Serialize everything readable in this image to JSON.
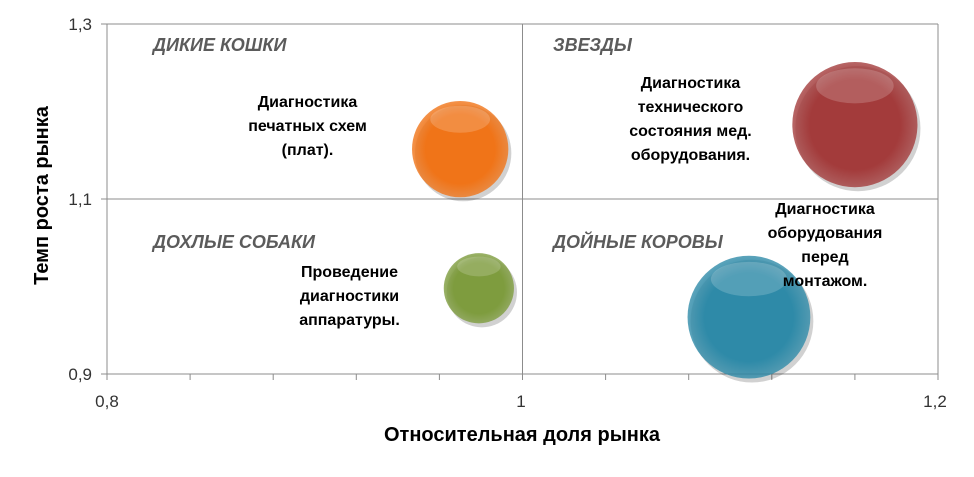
{
  "chart_data": {
    "type": "bubble",
    "xlabel": "Относительная доля рынка",
    "ylabel": "Темп роста рынка",
    "xlim": [
      0.8,
      1.2
    ],
    "ylim": [
      0.9,
      1.3
    ],
    "x_ticks": [
      "0,8",
      "1",
      "1,2"
    ],
    "y_ticks": [
      "0,9",
      "1,1",
      "1,3"
    ],
    "x_minor_step": 0.04,
    "divider": {
      "x": 1.0,
      "y": 1.1
    },
    "quadrants": [
      {
        "label": "ДИКИЕ КОШКИ"
      },
      {
        "label": "ЗВЕЗДЫ"
      },
      {
        "label": "ДОХЛЫЕ СОБАКИ"
      },
      {
        "label": "ДОЙНЫЕ КОРОВЫ"
      }
    ],
    "series": [
      {
        "name": "Диагностика печатных схем (плат).",
        "x": 0.97,
        "y": 1.157,
        "size": 1.6,
        "color": "#f07418"
      },
      {
        "name": "Диагностика технического состояния мед. оборудования.",
        "x": 1.16,
        "y": 1.185,
        "size": 2.7,
        "color": "#a33b3b"
      },
      {
        "name": "Проведение диагностики аппаратуры.",
        "x": 0.979,
        "y": 0.998,
        "size": 0.85,
        "color": "#7e9c3e"
      },
      {
        "name": "Диагностика оборудования перед монтажом.",
        "x": 1.109,
        "y": 0.965,
        "size": 2.6,
        "color": "#2e8aa8"
      }
    ],
    "labels": [
      {
        "text": "Диагностика\nпечатных схем\n(плат)."
      },
      {
        "text": "Диагностика\nтехнического\nсостояния мед.\nоборудования."
      },
      {
        "text": "Проведение\nдиагностики\nаппаратуры."
      },
      {
        "text": "Диагностика\nоборудования\nперед\nмонтажом."
      }
    ],
    "grid": true,
    "legend": "none"
  }
}
